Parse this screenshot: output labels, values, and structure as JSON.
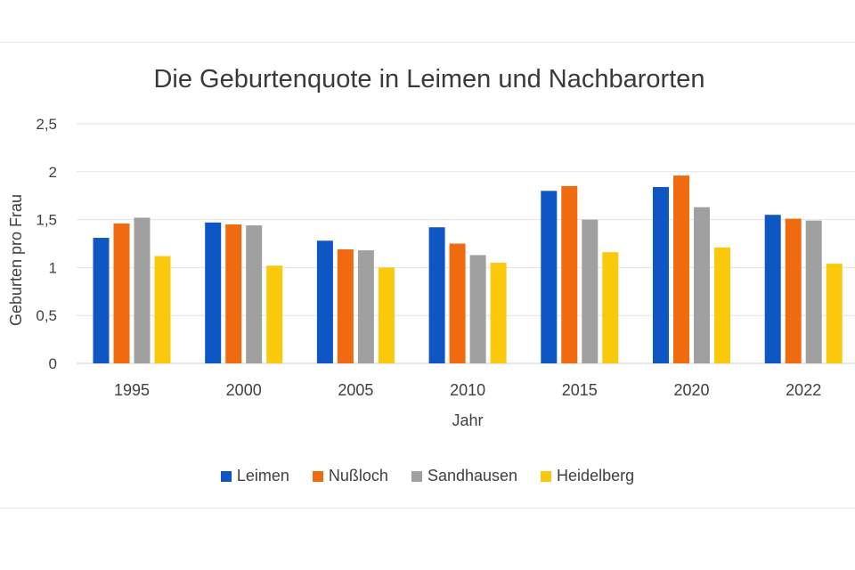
{
  "chart_data": {
    "type": "bar",
    "title": "Die Geburtenquote in Leimen und Nachbarorten",
    "xlabel": "Jahr",
    "ylabel": "Geburten pro Frau",
    "categories": [
      "1995",
      "2000",
      "2005",
      "2010",
      "2015",
      "2020",
      "2022"
    ],
    "ylim": [
      0,
      2.5
    ],
    "yticks": [
      "0",
      "0,5",
      "1",
      "1,5",
      "2",
      "2,5"
    ],
    "grid": true,
    "legend_position": "bottom",
    "series": [
      {
        "name": "Leimen",
        "color": "#0e56c4",
        "values": [
          1.31,
          1.47,
          1.28,
          1.42,
          1.8,
          1.84,
          1.55
        ]
      },
      {
        "name": "Nußloch",
        "color": "#f06a0f",
        "values": [
          1.46,
          1.45,
          1.19,
          1.25,
          1.85,
          1.96,
          1.51
        ]
      },
      {
        "name": "Sandhausen",
        "color": "#a0a0a0",
        "values": [
          1.52,
          1.44,
          1.18,
          1.13,
          1.5,
          1.63,
          1.49
        ]
      },
      {
        "name": "Heidelberg",
        "color": "#fbc90c",
        "values": [
          1.12,
          1.02,
          1.0,
          1.05,
          1.16,
          1.21,
          1.04
        ]
      }
    ]
  }
}
